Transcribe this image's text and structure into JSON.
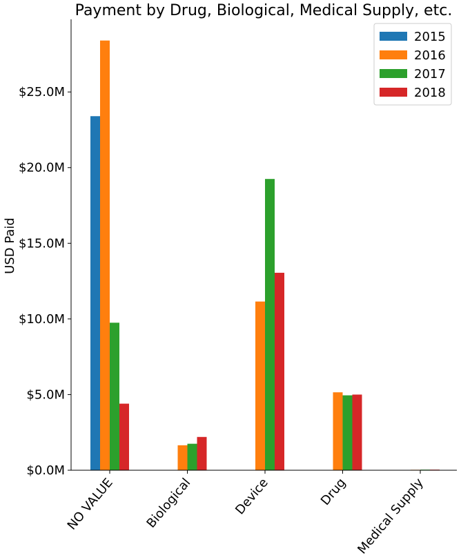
{
  "chart_data": {
    "type": "bar",
    "title": "Payment by Drug, Biological, Medical Supply, etc.",
    "xlabel": "",
    "ylabel": "USD Paid",
    "categories": [
      "NO VALUE",
      "Biological",
      "Device",
      "Drug",
      "Medical Supply"
    ],
    "series": [
      {
        "name": "2015",
        "color": "#1f77b4",
        "values": [
          23.4,
          0,
          0,
          0,
          0
        ]
      },
      {
        "name": "2016",
        "color": "#ff7f0e",
        "values": [
          28.4,
          1.65,
          11.15,
          5.15,
          0.03
        ]
      },
      {
        "name": "2017",
        "color": "#2ca02c",
        "values": [
          9.75,
          1.75,
          19.25,
          4.95,
          0.04
        ]
      },
      {
        "name": "2018",
        "color": "#d62728",
        "values": [
          4.4,
          2.2,
          13.05,
          5.0,
          0.04
        ]
      }
    ],
    "ylim": [
      0,
      29.8
    ],
    "y_ticks": [
      0,
      5,
      10,
      15,
      20,
      25
    ],
    "y_tick_labels": [
      "$0.0M",
      "$5.0M",
      "$10.0M",
      "$15.0M",
      "$20.0M",
      "$25.0M"
    ],
    "legend_position": "top-right",
    "grid": false
  }
}
